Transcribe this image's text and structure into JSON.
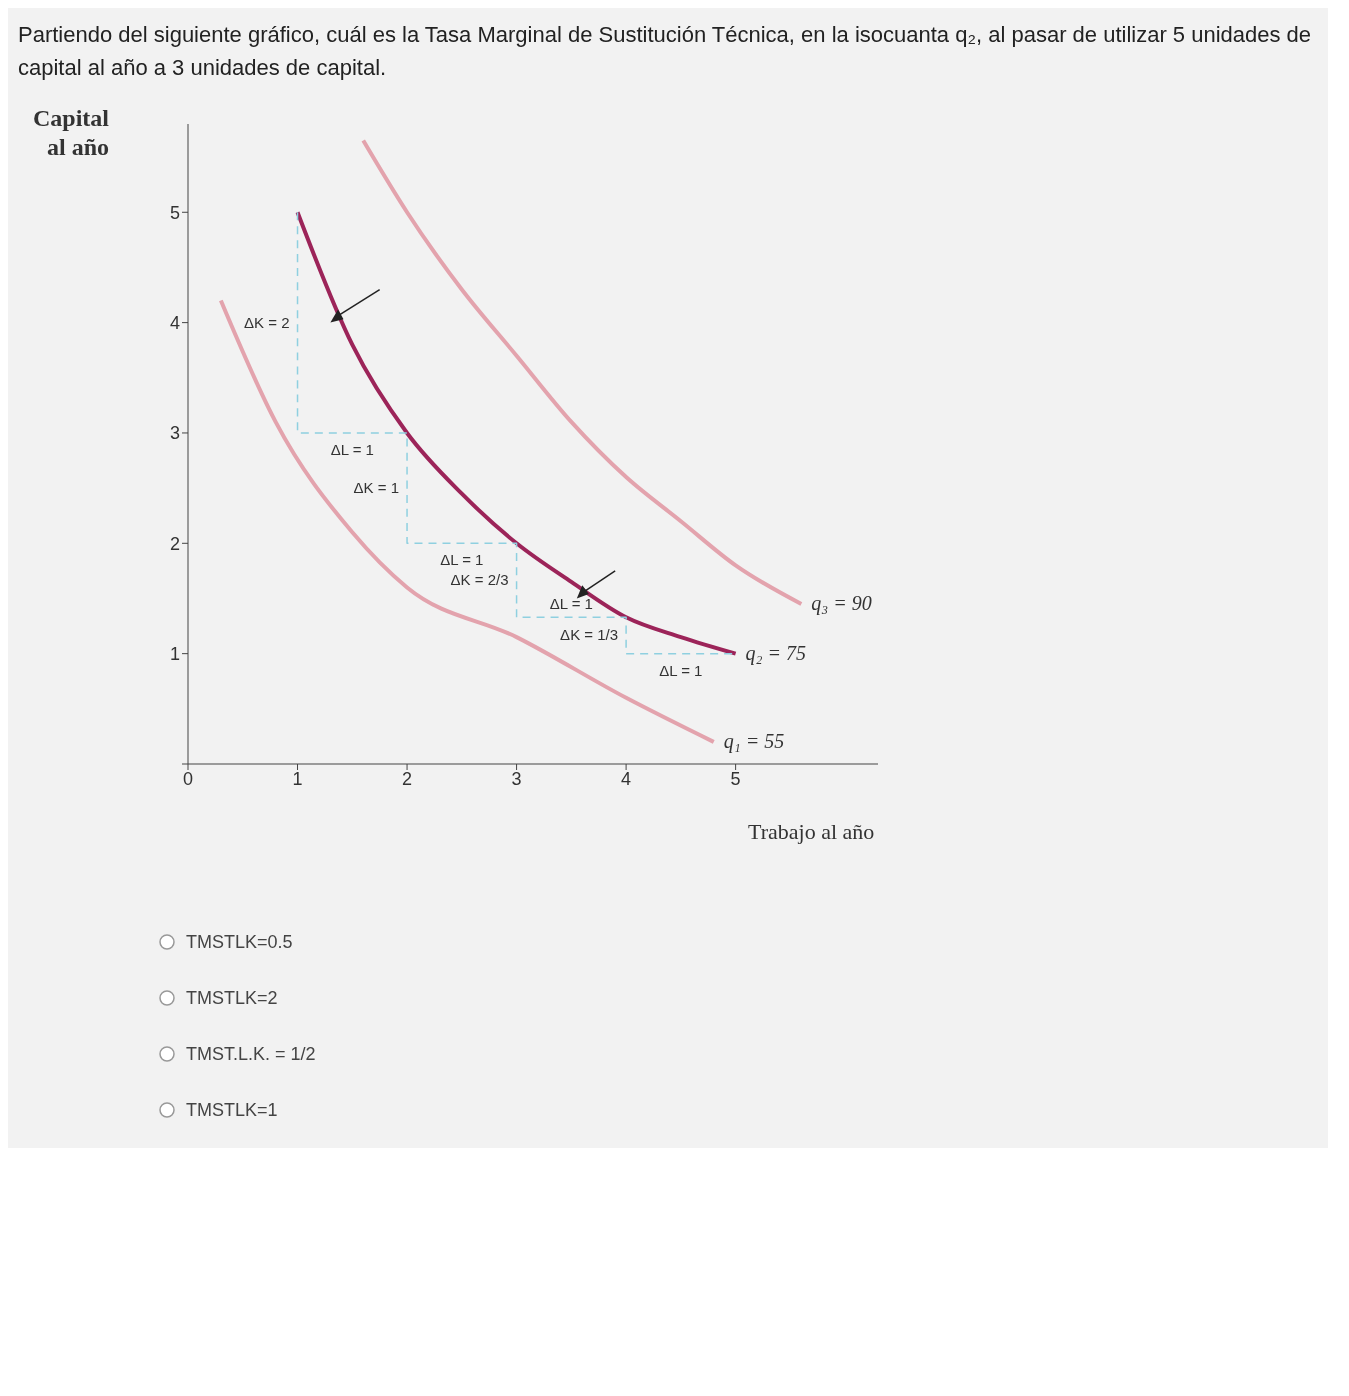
{
  "chart_data": {
    "type": "line",
    "title": "Partiendo del siguiente gráfico, cuál es la Tasa Marginal de Sustitución Técnica, en la isocuanta q₂, al pasar de utilizar 5 unidades de capital al año a 3 unidades de capital.",
    "xlabel": "Trabajo al año",
    "ylabel": "Capital al año",
    "xlim": [
      0,
      6.3
    ],
    "ylim": [
      0,
      5.8
    ],
    "xticks": [
      0,
      1,
      2,
      3,
      4,
      5
    ],
    "yticks": [
      {
        "value": 0,
        "label": null
      },
      1,
      2,
      3,
      4,
      5
    ],
    "marker": "none",
    "series": [
      {
        "name": "q₃ = 90",
        "color": "#e3a3ad",
        "x": [
          1.6,
          2,
          2.5,
          3,
          3.5,
          4,
          4.5,
          5,
          5.6
        ],
        "values": [
          5.65,
          5,
          4.3,
          3.7,
          3.1,
          2.6,
          2.2,
          1.8,
          1.45
        ]
      },
      {
        "name": "q₂ = 75",
        "color": "#9c2459",
        "x": [
          1,
          1.5,
          2,
          2.5,
          3,
          3.5,
          4,
          4.5,
          5
        ],
        "values": [
          5,
          3.8,
          3,
          2.45,
          2,
          1.65,
          1.33,
          1.15,
          1
        ]
      },
      {
        "name": "q₁ = 55",
        "color": "#e3a3ad",
        "x": [
          0.3,
          0.8,
          1.5,
          2,
          3,
          4,
          4.8
        ],
        "values": [
          4.2,
          3.1,
          2.1,
          1.6,
          1.15,
          0.6,
          0.2
        ]
      },
      {
        "type": "line",
        "color": "#8fd0e0",
        "line_style": "dashed",
        "x": [
          1,
          1,
          2,
          2,
          3,
          3,
          4,
          4,
          5
        ],
        "values": [
          5,
          3,
          3,
          2,
          2,
          1.33,
          1.33,
          1,
          1
        ]
      }
    ],
    "annotations": [
      "ΔK = 2",
      "ΔL = 1",
      "ΔK = 1",
      "ΔL = 1",
      "ΔK = 2/3",
      "ΔL = 1",
      "ΔK = 1/3",
      "ΔL = 1",
      "TMSTLK=0.5",
      "TMSTLK=2",
      "TMST.L.K. = 1/2",
      "TMSTLK=1"
    ]
  }
}
